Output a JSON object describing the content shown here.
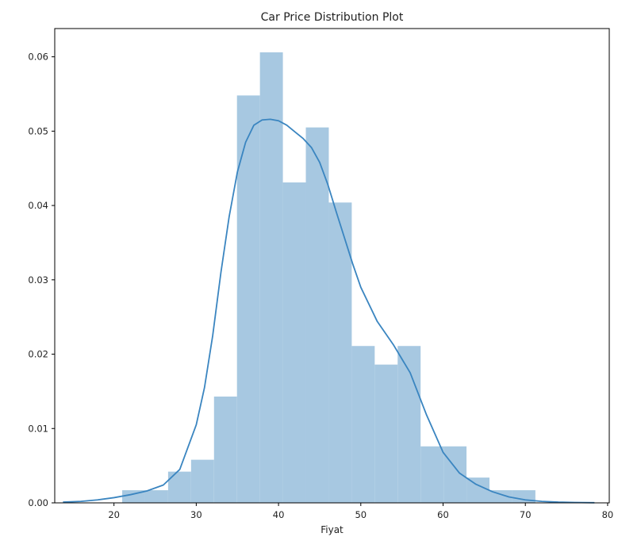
{
  "chart_data": {
    "type": "bar",
    "title": "Car Price Distribution Plot",
    "xlabel": "Fiyat",
    "ylabel": "",
    "xlim": [
      12.8,
      80.2
    ],
    "ylim": [
      0,
      0.0638
    ],
    "x_ticks": [
      20,
      30,
      40,
      50,
      60,
      70,
      80
    ],
    "y_ticks": [
      0.0,
      0.01,
      0.02,
      0.03,
      0.04,
      0.05,
      0.06
    ],
    "y_tick_labels": [
      "0.00",
      "0.01",
      "0.02",
      "0.03",
      "0.04",
      "0.05",
      "0.06"
    ],
    "histogram": {
      "bin_width": 2.79,
      "bin_starts": [
        21.0,
        23.79,
        26.58,
        29.37,
        32.16,
        34.95,
        37.74,
        40.53,
        43.32,
        46.11,
        48.9,
        51.69,
        54.48,
        57.27,
        60.06,
        62.85,
        65.64,
        68.43
      ],
      "densities": [
        0.0017,
        0.0017,
        0.0042,
        0.0058,
        0.0143,
        0.0548,
        0.0606,
        0.0431,
        0.0505,
        0.0404,
        0.0211,
        0.0186,
        0.0211,
        0.0076,
        0.0076,
        0.0034,
        0.0017,
        0.0017
      ],
      "color": "#a7c8e1"
    },
    "kde": {
      "x": [
        13.8,
        16,
        18,
        20,
        22,
        24,
        26,
        28,
        30,
        31,
        32,
        33,
        34,
        35,
        36,
        37,
        38,
        39,
        40,
        41,
        42,
        43,
        44,
        45,
        46,
        47,
        48,
        49,
        50,
        52,
        54,
        56,
        58,
        60,
        62,
        64,
        66,
        68,
        70,
        72,
        74,
        76,
        78.4
      ],
      "y": [
        0.0001,
        0.0002,
        0.0004,
        0.0007,
        0.0011,
        0.0016,
        0.0024,
        0.0045,
        0.0105,
        0.0155,
        0.0225,
        0.031,
        0.0385,
        0.0445,
        0.0485,
        0.0508,
        0.0515,
        0.0516,
        0.0514,
        0.0508,
        0.0499,
        0.049,
        0.0478,
        0.0458,
        0.0428,
        0.0392,
        0.0357,
        0.0322,
        0.029,
        0.0244,
        0.0212,
        0.0175,
        0.0118,
        0.0068,
        0.004,
        0.0025,
        0.0015,
        0.0008,
        0.0004,
        0.0002,
        0.0001,
        5e-05,
        2e-05
      ],
      "color": "#3a85c0"
    },
    "grid": false,
    "legend": "none"
  }
}
